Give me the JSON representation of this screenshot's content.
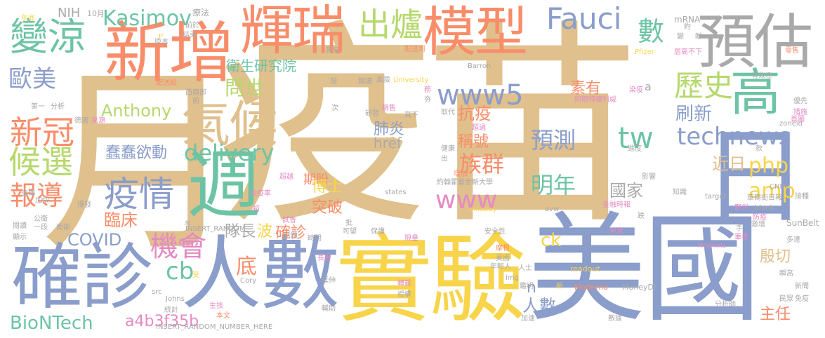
{
  "words": [
    {
      "text": "疫苗",
      "color": "#e0c08c"
    },
    {
      "text": "月",
      "color": "#e0c08c"
    },
    {
      "text": "美國",
      "color": "#8a9dcb"
    },
    {
      "text": "實驗",
      "color": "#f8d44a"
    },
    {
      "text": "確診",
      "color": "#8a9dcb"
    },
    {
      "text": "人數",
      "color": "#8a9dcb"
    },
    {
      "text": "日",
      "color": "#8a9dcb"
    },
    {
      "text": "新增",
      "color": "#f98d6a"
    },
    {
      "text": "輝瑞",
      "color": "#f98d6a"
    },
    {
      "text": "模型",
      "color": "#f98d6a"
    },
    {
      "text": "預估",
      "color": "#a9a9a9"
    },
    {
      "text": "週",
      "color": "#6cc4a4"
    },
    {
      "text": "氣候",
      "color": "#e0c08c"
    },
    {
      "text": "高",
      "color": "#6cc4a4"
    },
    {
      "text": "變涼",
      "color": "#6cc4a4"
    },
    {
      "text": "出爐",
      "color": "#b6d86c"
    },
    {
      "text": "Fauci",
      "color": "#8a9dcb"
    },
    {
      "text": "Kasimov",
      "color": "#6cc4a4"
    },
    {
      "text": "歷史",
      "color": "#b6d86c"
    },
    {
      "text": "www5",
      "color": "#8a9dcb"
    },
    {
      "text": "疫情",
      "color": "#8a9dcb"
    },
    {
      "text": "新冠",
      "color": "#f98d6a"
    },
    {
      "text": "候選",
      "color": "#b6d86c"
    },
    {
      "text": "technews",
      "color": "#8a9dcb"
    },
    {
      "text": "歐美",
      "color": "#8a9dcb"
    },
    {
      "text": "機會",
      "color": "#e58ac3"
    },
    {
      "text": "www",
      "color": "#e58ac3"
    },
    {
      "text": "delivery",
      "color": "#6cc4a4"
    },
    {
      "text": "tw",
      "color": "#6cc4a4"
    },
    {
      "text": "php",
      "color": "#f8d44a"
    },
    {
      "text": "amp",
      "color": "#f8d44a"
    },
    {
      "text": "報導",
      "color": "#f98d6a"
    },
    {
      "text": "BioNTech",
      "color": "#6cc4a4"
    },
    {
      "text": "預測",
      "color": "#8a9dcb"
    },
    {
      "text": "明年",
      "color": "#6cc4a4"
    },
    {
      "text": "族群",
      "color": "#f98d6a"
    },
    {
      "text": "數",
      "color": "#6cc4a4"
    },
    {
      "text": "cb",
      "color": "#6cc4a4"
    },
    {
      "text": "衛生研究院",
      "color": "#6cc4a4"
    },
    {
      "text": "問世",
      "color": "#b6d86c"
    },
    {
      "text": "素有",
      "color": "#f98d6a"
    },
    {
      "text": "抗疫",
      "color": "#f98d6a"
    },
    {
      "text": "刷新",
      "color": "#8a9dcb"
    },
    {
      "text": "肺炎",
      "color": "#8a9dcb"
    },
    {
      "text": "蠢蠢欲動",
      "color": "#8a9dcb"
    },
    {
      "text": "Anthony",
      "color": "#b6d86c"
    },
    {
      "text": "href",
      "color": "#a9a9a9"
    },
    {
      "text": "稱號",
      "color": "#f98d6a"
    },
    {
      "text": "近日",
      "color": "#e0c08c"
    },
    {
      "text": "國家",
      "color": "#a9a9a9"
    },
    {
      "text": "期盼",
      "color": "#f98d6a"
    },
    {
      "text": "博士",
      "color": "#f8d44a"
    },
    {
      "text": "突破",
      "color": "#f98d6a"
    },
    {
      "text": "COVID",
      "color": "#8a9dcb"
    },
    {
      "text": "臨床",
      "color": "#f98d6a"
    },
    {
      "text": "隊長",
      "color": "#a9a9a9"
    },
    {
      "text": "波",
      "color": "#f8d44a"
    },
    {
      "text": "確診",
      "color": "#f98d6a"
    },
    {
      "text": "底",
      "color": "#f98d6a"
    },
    {
      "text": "ck",
      "color": "#f8d44a"
    },
    {
      "text": "人數",
      "color": "#8a9dcb"
    },
    {
      "text": "殷切",
      "color": "#e0c08c"
    },
    {
      "text": "主任",
      "color": "#f98d6a"
    },
    {
      "text": "a4b3f35b",
      "color": "#e58ac3"
    },
    {
      "text": "n",
      "color": "#8a9dcb"
    },
    {
      "text": "NIH",
      "color": "#a9a9a9"
    },
    {
      "text": "10月",
      "color": "#a9a9a9"
    },
    {
      "text": "年底",
      "color": "#f8d44a"
    },
    {
      "text": "療法",
      "color": "#a9a9a9"
    },
    {
      "text": "mRNA",
      "color": "#a9a9a9"
    },
    {
      "text": "約",
      "color": "#a9a9a9"
    },
    {
      "text": "前於",
      "color": "#a9a9a9"
    },
    {
      "text": "結束",
      "color": "#a9a9a9"
    },
    {
      "text": "原本",
      "color": "#a9a9a9"
    },
    {
      "text": "P",
      "color": "#f8d44a"
    },
    {
      "text": "配送到",
      "color": "#f98d6a"
    },
    {
      "text": "貫穿",
      "color": "#a9a9a9"
    },
    {
      "text": "Pfizer",
      "color": "#f8d44a"
    },
    {
      "text": "居高不下",
      "color": "#e58ac3"
    },
    {
      "text": "零售",
      "color": "#f98d6a"
    },
    {
      "text": "Barron",
      "color": "#a9a9a9"
    },
    {
      "text": "西南部",
      "color": "#a9a9a9"
    },
    {
      "text": "冠",
      "color": "#a9a9a9"
    },
    {
      "text": "解讀",
      "color": "#a9a9a9"
    },
    {
      "text": "風險",
      "color": "#a9a9a9"
    },
    {
      "text": "University",
      "color": "#f8d44a"
    },
    {
      "text": "染疫",
      "color": "#e58ac3"
    },
    {
      "text": "同期特捷利威",
      "color": "#e58ac3"
    },
    {
      "text": "有效性",
      "color": "#a9a9a9"
    },
    {
      "text": "優先",
      "color": "#a9a9a9"
    },
    {
      "text": "措施",
      "color": "#e58ac3"
    },
    {
      "text": "配送給",
      "color": "#f98d6a"
    },
    {
      "text": "分析",
      "color": "#a9a9a9"
    },
    {
      "text": "第一",
      "color": "#a9a9a9"
    },
    {
      "text": "德國",
      "color": "#a9a9a9"
    },
    {
      "text": "來源",
      "color": "#e58ac3"
    },
    {
      "text": "研發",
      "color": "#a9a9a9"
    },
    {
      "text": "銷售",
      "color": "#e58ac3"
    },
    {
      "text": "寫下",
      "color": "#a9a9a9"
    },
    {
      "text": "取代",
      "color": "#a9a9a9"
    },
    {
      "text": "超過",
      "color": "#e58ac3"
    },
    {
      "text": "健康",
      "color": "#a9a9a9"
    },
    {
      "text": "增加",
      "color": "#f98d6a"
    },
    {
      "text": "約翰霍普金斯大學",
      "color": "#a9a9a9"
    },
    {
      "text": "zoneid",
      "color": "#a9a9a9"
    },
    {
      "text": "進度",
      "color": "#a9a9a9"
    },
    {
      "text": "首圖",
      "color": "#e58ac3"
    },
    {
      "text": "款",
      "color": "#a9a9a9"
    },
    {
      "text": "影響",
      "color": "#a9a9a9"
    },
    {
      "text": "染疫率",
      "color": "#e58ac3"
    },
    {
      "text": "遺傳",
      "color": "#a9a9a9"
    },
    {
      "text": "加快",
      "color": "#a9a9a9"
    },
    {
      "text": "超越",
      "color": "#e58ac3"
    },
    {
      "text": "states",
      "color": "#a9a9a9"
    },
    {
      "text": "知識",
      "color": "#a9a9a9"
    },
    {
      "text": "target",
      "color": "#a9a9a9"
    },
    {
      "text": "接種",
      "color": "#a9a9a9"
    },
    {
      "text": "CNBC",
      "color": "#a9a9a9"
    },
    {
      "text": "華爾街日報",
      "color": "#a9a9a9"
    },
    {
      "text": "_blank",
      "color": "#a9a9a9"
    },
    {
      "text": "爆發",
      "color": "#a9a9a9"
    },
    {
      "text": "試香",
      "color": "#e58ac3"
    },
    {
      "text": "初",
      "color": "#e58ac3"
    },
    {
      "text": "pixabay",
      "color": "#f8d44a"
    },
    {
      "text": "avw",
      "color": "#a9a9a9"
    },
    {
      "text": "金融時報",
      "color": "#e58ac3"
    },
    {
      "text": "野伴",
      "color": "#e58ac3"
    },
    {
      "text": "防疫",
      "color": "#e58ac3"
    },
    {
      "text": "公衛",
      "color": "#a9a9a9"
    },
    {
      "text": "話題",
      "color": "#a9a9a9"
    },
    {
      "text": "INSERT_RANDOM_",
      "color": "#a9a9a9"
    },
    {
      "text": "可望",
      "color": "#a9a9a9"
    },
    {
      "text": "批",
      "color": "#a9a9a9"
    },
    {
      "text": "保護",
      "color": "#a9a9a9"
    },
    {
      "text": "安全性",
      "color": "#a9a9a9"
    },
    {
      "text": "地席",
      "color": "#e58ac3"
    },
    {
      "text": "手",
      "color": "#a9a9a9"
    },
    {
      "text": "激增",
      "color": "#a9a9a9"
    },
    {
      "text": "SunBelt",
      "color": "#a9a9a9"
    },
    {
      "text": "多達",
      "color": "#a9a9a9"
    },
    {
      "text": "一段",
      "color": "#a9a9a9"
    },
    {
      "text": "南部",
      "color": "#a9a9a9"
    },
    {
      "text": "閱讀",
      "color": "#a9a9a9"
    },
    {
      "text": "顯示",
      "color": "#a9a9a9"
    },
    {
      "text": "時間",
      "color": "#a9a9a9"
    },
    {
      "text": "限量",
      "color": "#e58ac3"
    },
    {
      "text": "摩根",
      "color": "#f98d6a"
    },
    {
      "text": "美國",
      "color": "#a9a9a9"
    },
    {
      "text": "年輕人",
      "color": "#a9a9a9"
    },
    {
      "text": "人士",
      "color": "#a9a9a9"
    },
    {
      "text": "筆者",
      "color": "#e58ac3"
    },
    {
      "text": "Hopkins",
      "color": "#e58ac3"
    },
    {
      "text": "瞬高",
      "color": "#a9a9a9"
    },
    {
      "text": "長者",
      "color": "#e58ac3"
    },
    {
      "text": "受",
      "color": "#f8d44a"
    },
    {
      "text": "延伸",
      "color": "#a9a9a9"
    },
    {
      "text": "Cory",
      "color": "#a9a9a9"
    },
    {
      "text": "img",
      "color": "#a9a9a9"
    },
    {
      "text": "鑑明",
      "color": "#a9a9a9"
    },
    {
      "text": "新",
      "color": "#f8d44a"
    },
    {
      "text": "readout",
      "color": "#f8d44a"
    },
    {
      "text": "Moderna",
      "color": "#f98d6a"
    },
    {
      "text": "MoneyDJ",
      "color": "#a9a9a9"
    },
    {
      "text": "分析師",
      "color": "#a9a9a9"
    },
    {
      "text": "民眾",
      "color": "#a9a9a9"
    },
    {
      "text": "免疫",
      "color": "#a9a9a9"
    },
    {
      "text": "新聞",
      "color": "#a9a9a9"
    },
    {
      "text": "src",
      "color": "#a9a9a9"
    },
    {
      "text": "Johns",
      "color": "#a9a9a9"
    },
    {
      "text": "轉載",
      "color": "#e58ac3"
    },
    {
      "text": "授權",
      "color": "#a9a9a9"
    },
    {
      "text": "輔助",
      "color": "#a9a9a9"
    },
    {
      "text": "加速",
      "color": "#a9a9a9"
    },
    {
      "text": "統計",
      "color": "#a9a9a9"
    },
    {
      "text": "生技",
      "color": "#e58ac3"
    },
    {
      "text": "本文",
      "color": "#f98d6a"
    },
    {
      "text": "INSERT_RANDOM_NUMBER_HERE",
      "color": "#a9a9a9"
    },
    {
      "text": "數據",
      "color": "#a9a9a9"
    },
    {
      "text": "結論",
      "color": "#e58ac3"
    },
    {
      "text": "冬",
      "color": "#a9a9a9"
    },
    {
      "text": "跌",
      "color": "#a9a9a9"
    },
    {
      "text": "務",
      "color": "#e58ac3"
    },
    {
      "text": "次",
      "color": "#a9a9a9"
    },
    {
      "text": "出",
      "color": "#a9a9a9"
    },
    {
      "text": "夯",
      "color": "#a9a9a9"
    },
    {
      "text": "a",
      "color": "#a9a9a9"
    },
    {
      "text": "前",
      "color": "#a9a9a9"
    },
    {
      "text": "盼",
      "color": "#a9a9a9"
    },
    {
      "text": "變",
      "color": "#a9a9a9"
    }
  ]
}
